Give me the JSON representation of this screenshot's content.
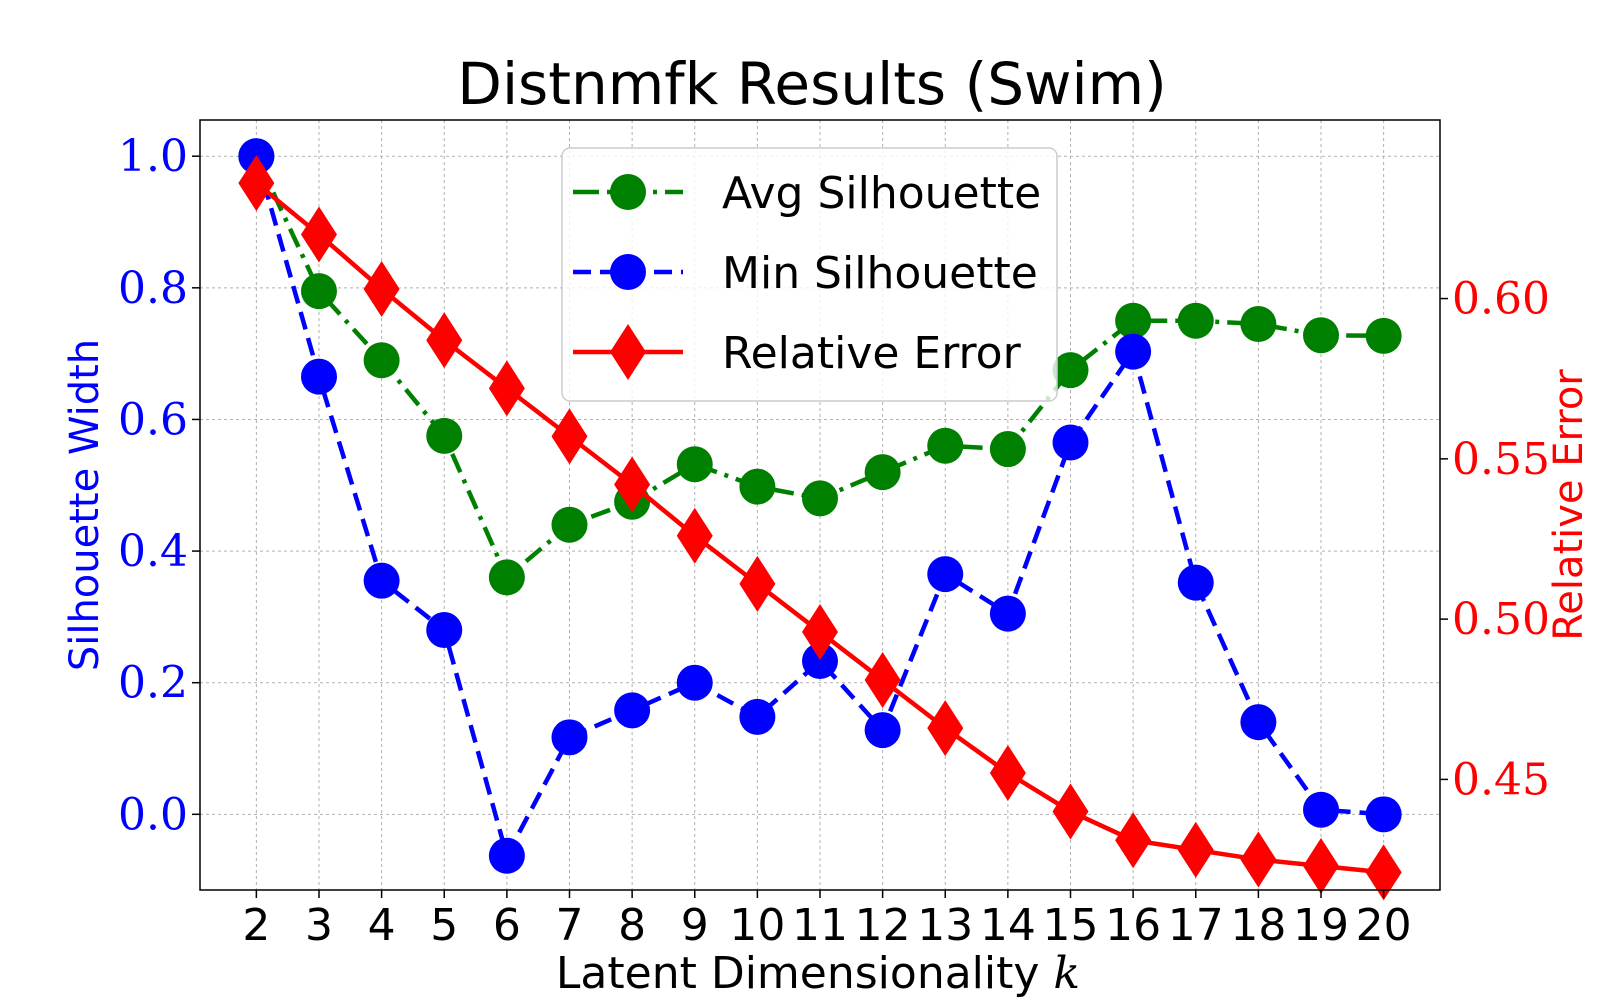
{
  "chart_data": {
    "type": "line",
    "title": "Distnmfk Results (Swim)",
    "xlabel": "Latent Dimensionality",
    "xlabel_var": "k",
    "ylabel_left": "Silhouette Width",
    "ylabel_right": "Relative Error",
    "x": [
      2,
      3,
      4,
      5,
      6,
      7,
      8,
      9,
      10,
      11,
      12,
      13,
      14,
      15,
      16,
      17,
      18,
      19,
      20
    ],
    "xlim": [
      1.1,
      20.9
    ],
    "ylim_left": [
      -0.115,
      1.055
    ],
    "ylim_right": [
      0.4155,
      0.6557
    ],
    "yticks_left": [
      "0.0",
      "0.2",
      "0.4",
      "0.6",
      "0.8",
      "1.0"
    ],
    "yticks_left_values": [
      0.0,
      0.2,
      0.4,
      0.6,
      0.8,
      1.0
    ],
    "yticks_right": [
      "0.45",
      "0.50",
      "0.55",
      "0.60"
    ],
    "yticks_right_values": [
      0.45,
      0.5,
      0.55,
      0.6
    ],
    "grid": true,
    "legend_position": "top-center",
    "series": [
      {
        "name": "Avg Silhouette",
        "axis": "left",
        "color": "#008000",
        "linestyle": "dashdot",
        "marker": "circle",
        "values": [
          1.0,
          0.795,
          0.69,
          0.575,
          0.36,
          0.44,
          0.475,
          0.532,
          0.498,
          0.48,
          0.52,
          0.56,
          0.555,
          0.675,
          0.75,
          0.75,
          0.745,
          0.728,
          0.727
        ]
      },
      {
        "name": "Min Silhouette",
        "axis": "left",
        "color": "#0000ff",
        "linestyle": "dashed",
        "marker": "circle",
        "values": [
          1.0,
          0.665,
          0.355,
          0.28,
          -0.063,
          0.117,
          0.158,
          0.2,
          0.148,
          0.233,
          0.128,
          0.365,
          0.305,
          0.565,
          0.703,
          0.352,
          0.14,
          0.007,
          0.0
        ]
      },
      {
        "name": "Relative Error",
        "axis": "right",
        "color": "#ff0000",
        "linestyle": "solid",
        "marker": "diamond",
        "values": [
          0.636,
          0.62,
          0.603,
          0.587,
          0.572,
          0.557,
          0.542,
          0.526,
          0.511,
          0.496,
          0.481,
          0.466,
          0.452,
          0.44,
          0.431,
          0.428,
          0.425,
          0.423,
          0.421
        ]
      }
    ]
  }
}
